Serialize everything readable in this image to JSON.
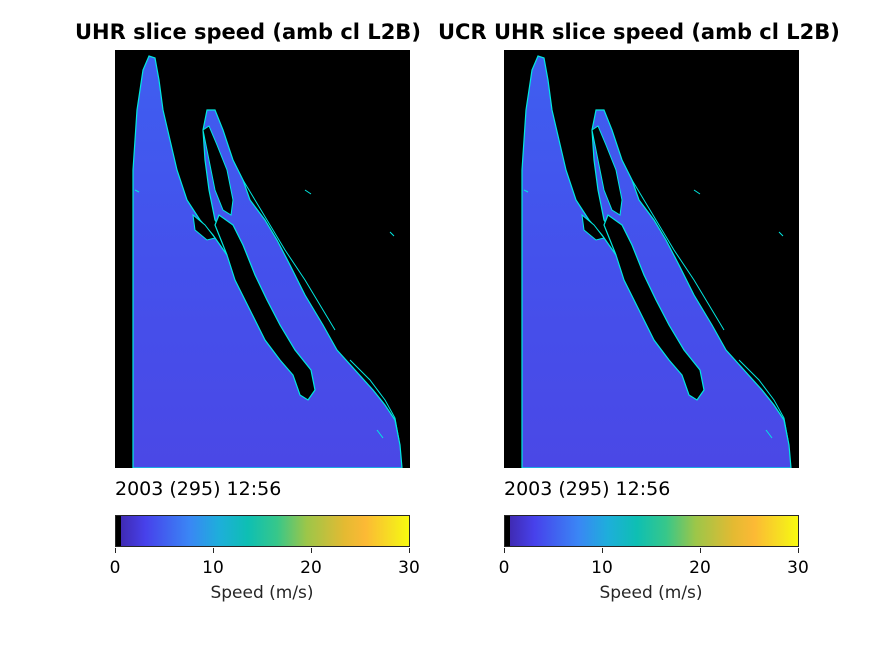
{
  "chart_data": [
    {
      "type": "heatmap",
      "title": "UHR slice speed (amb cl L2B)",
      "timestamp": "2003 (295) 12:56",
      "colorbar": {
        "label": "Speed (m/s)",
        "ticks": [
          "0",
          "10",
          "20",
          "30"
        ],
        "range": [
          0,
          30
        ],
        "colormap": "parula"
      }
    },
    {
      "type": "heatmap",
      "title": "UCR UHR slice speed (amb cl L2B)",
      "timestamp": "2003 (295) 12:56",
      "colorbar": {
        "label": "Speed (m/s)",
        "ticks": [
          "0",
          "10",
          "20",
          "30"
        ],
        "range": [
          0,
          30
        ],
        "colormap": "parula"
      }
    }
  ],
  "colors": {
    "ocean_low": "#4347e8",
    "ocean_mid": "#3d5ff0",
    "coast": "#00f0e0",
    "land": "#000000"
  }
}
